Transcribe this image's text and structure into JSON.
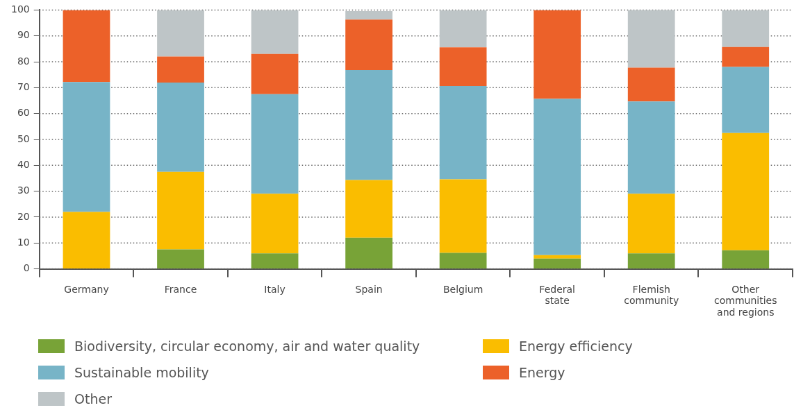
{
  "chart_data": {
    "type": "bar",
    "stacked": true,
    "categories": [
      "Germany",
      "France",
      "Italy",
      "Spain",
      "Belgium",
      "Federal state",
      "Flemish community",
      "Other communities and regions"
    ],
    "series": [
      {
        "name": "Biodiversity, circular economy, air and water quality",
        "color": "#78a337",
        "values": [
          0,
          7.5,
          6,
          12,
          6.2,
          4,
          6,
          7.2
        ]
      },
      {
        "name": "Energy efficiency",
        "color": "#fabd00",
        "values": [
          22,
          30,
          23,
          22.3,
          28.4,
          1.3,
          23,
          45.3
        ]
      },
      {
        "name": "Sustainable mobility",
        "color": "#77b4c7",
        "values": [
          50.2,
          34.5,
          38.5,
          42.5,
          36,
          60.4,
          35.7,
          25.5
        ]
      },
      {
        "name": "Energy",
        "color": "#ec6129",
        "values": [
          27.8,
          10,
          15.5,
          19.5,
          15,
          34.3,
          13,
          7.7
        ]
      },
      {
        "name": "Other",
        "color": "#bec5c7",
        "values": [
          0,
          18,
          17,
          3.3,
          14.3,
          0,
          22.4,
          14.3
        ]
      }
    ],
    "ylim": [
      0,
      100
    ],
    "yticks": [
      0,
      10,
      20,
      30,
      40,
      50,
      60,
      70,
      80,
      90,
      100
    ],
    "grid": "y",
    "legend": "bottom left"
  }
}
